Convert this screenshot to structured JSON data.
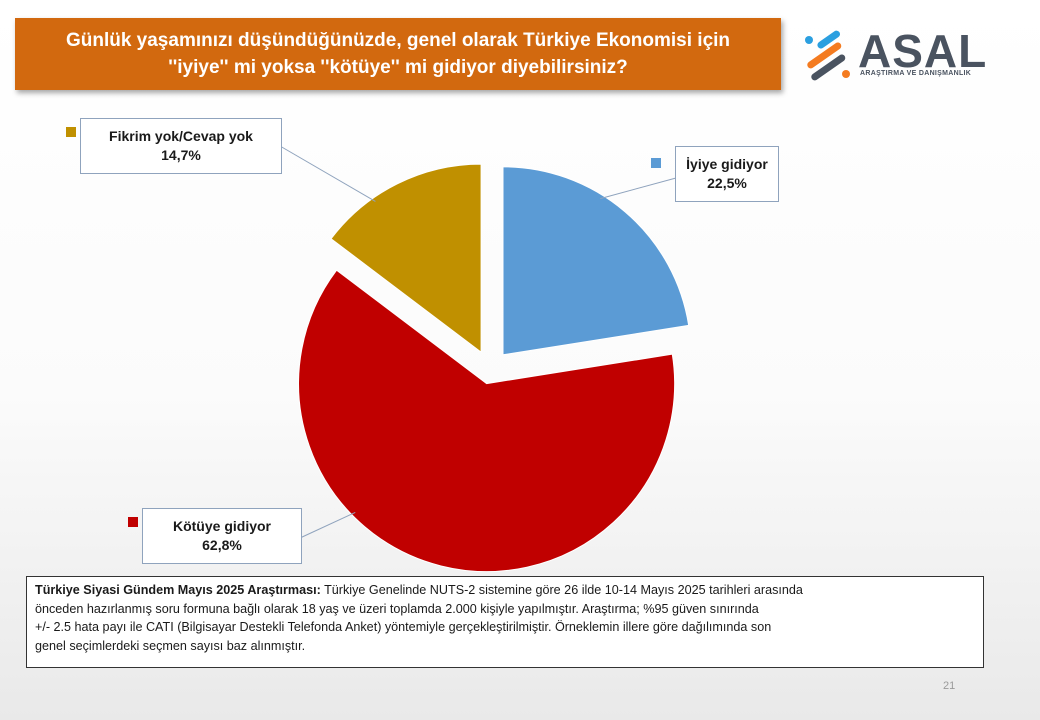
{
  "header": {
    "title_line1": "Günlük yaşamınızı düşündüğünüzde, genel olarak Türkiye Ekonomisi için",
    "title_line2": "''iyiye'' mi yoksa ''kötüye'' mi gidiyor diyebilirsiniz?"
  },
  "logo": {
    "name": "ASAL",
    "subtitle": "ARAŞTIRMA VE DANIŞMANLIK",
    "colors": [
      "#2b9fe0",
      "#f47b20",
      "#4a5360"
    ]
  },
  "chart_data": {
    "type": "pie",
    "style": "exploded",
    "labels": [
      "İyiye gidiyor",
      "Kötüye gidiyor",
      "Fikrim yok/Cevap yok"
    ],
    "values": [
      22.5,
      62.8,
      14.7
    ],
    "value_labels": [
      "22,5%",
      "62,8%",
      "14,7%"
    ],
    "colors": [
      "#5b9bd5",
      "#c00000",
      "#c09000"
    ],
    "start": "12 o'clock",
    "direction": "clockwise"
  },
  "note": {
    "bold_text": "Türkiye Siyasi Gündem Mayıs 2025 Araştırması:",
    "line1": "Türkiye Genelinde NUTS-2 sistemine göre 26 ilde 10-14 Mayıs 2025 tarihleri arasında",
    "line2": "önceden hazırlanmış soru formuna bağlı olarak 18 yaş ve üzeri toplamda 2.000 kişiyle yapılmıştır. Araştırma; %95 güven sınırında",
    "line3": "+/- 2.5 hata payı ile CATI (Bilgisayar Destekli Telefonda Anket) yöntemiyle gerçekleştirilmiştir. Örneklemin illere göre dağılımında son",
    "line4": "genel seçimlerdeki seçmen sayısı baz alınmıştır."
  },
  "page_number": "21"
}
